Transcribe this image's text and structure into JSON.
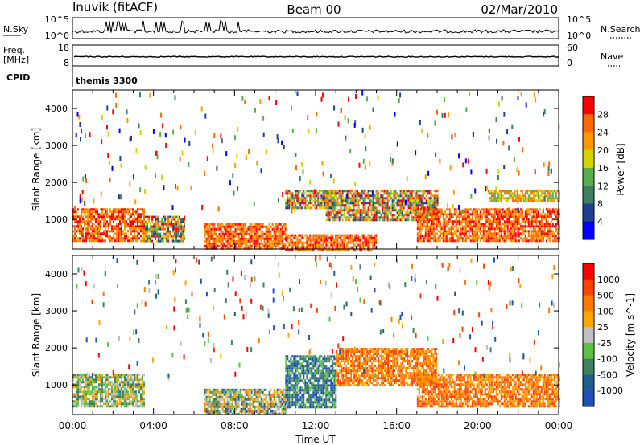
{
  "header": {
    "station": "Inuvik (fitACF)",
    "beam": "Beam 00",
    "date": "02/Mar/2010"
  },
  "panels": {
    "nsky": {
      "left_label": "N.Sky",
      "y_ticks_left": [
        "10^5",
        "10^0"
      ],
      "y_ticks_right": [
        "10^5",
        "10^0"
      ],
      "right_label": "N.Search"
    },
    "freq": {
      "left_label_1": "Freq.",
      "left_label_2": "[MHz]",
      "y_ticks_left": [
        "18",
        "8"
      ],
      "y_ticks_right": [
        "60",
        "0"
      ],
      "right_label": "Nave"
    },
    "cpid": {
      "left_label": "CPID",
      "text": "themis 3300"
    }
  },
  "colors": {
    "power_scale": [
      "#0000ff",
      "#1f3f8f",
      "#3d7f5f",
      "#58b04c",
      "#d6d400",
      "#ff9900",
      "#ff6a00",
      "#ff0000"
    ],
    "velocity_scale": [
      "#2050c0",
      "#1f5f8f",
      "#3e8060",
      "#5fc045",
      "#c0c0c0",
      "#ffa500",
      "#ff7a00",
      "#ff4000",
      "#ff0000"
    ]
  },
  "chart_data": [
    {
      "type": "heatmap",
      "title": "",
      "quantity": "Power",
      "ylabel": "Slant Range [km]",
      "ylim": [
        200,
        4500
      ],
      "yticks": [
        "1000",
        "2000",
        "3000",
        "4000"
      ],
      "xlabel": "Time UT",
      "xticks": [
        "00:00",
        "04:00",
        "08:00",
        "12:00",
        "16:00",
        "20:00",
        "00:00"
      ],
      "colorbar_label": "Power [dB]",
      "colorbar_ticks": [
        "28",
        "24",
        "20",
        "16",
        "12",
        "8",
        "4"
      ],
      "regions": [
        {
          "t": [
            0,
            3.5
          ],
          "r": [
            400,
            1300
          ],
          "level": "high"
        },
        {
          "t": [
            3.5,
            5.5
          ],
          "r": [
            400,
            1100
          ],
          "level": "mixed"
        },
        {
          "t": [
            6.5,
            10.5
          ],
          "r": [
            200,
            900
          ],
          "level": "high"
        },
        {
          "t": [
            10.5,
            15
          ],
          "r": [
            200,
            600
          ],
          "level": "high"
        },
        {
          "t": [
            10.5,
            13
          ],
          "r": [
            1300,
            1800
          ],
          "level": "mixed"
        },
        {
          "t": [
            12.5,
            18
          ],
          "r": [
            1000,
            1800
          ],
          "level": "mixed"
        },
        {
          "t": [
            17,
            24
          ],
          "r": [
            400,
            1300
          ],
          "level": "high"
        },
        {
          "t": [
            20.5,
            24
          ],
          "r": [
            1500,
            1800
          ],
          "level": "medium"
        }
      ]
    },
    {
      "type": "heatmap",
      "title": "",
      "quantity": "Velocity",
      "ylabel": "Slant Range [km]",
      "ylim": [
        200,
        4500
      ],
      "yticks": [
        "1000",
        "2000",
        "3000",
        "4000"
      ],
      "xlabel": "Time UT",
      "xticks": [
        "00:00",
        "04:00",
        "08:00",
        "12:00",
        "16:00",
        "20:00",
        "00:00"
      ],
      "colorbar_label": "Velocity [m s^-1]",
      "colorbar_ticks": [
        "1000",
        "500",
        "100",
        "25",
        "-25",
        "-100",
        "-500",
        "-1000"
      ],
      "regions": [
        {
          "t": [
            0,
            3.5
          ],
          "r": [
            400,
            1300
          ],
          "level": "toward-mixed"
        },
        {
          "t": [
            6.5,
            10.5
          ],
          "r": [
            200,
            900
          ],
          "level": "mixed"
        },
        {
          "t": [
            10.5,
            13
          ],
          "r": [
            400,
            1800
          ],
          "level": "toward"
        },
        {
          "t": [
            13,
            18
          ],
          "r": [
            1000,
            2000
          ],
          "level": "away"
        },
        {
          "t": [
            17,
            24
          ],
          "r": [
            400,
            1300
          ],
          "level": "away"
        }
      ]
    }
  ]
}
